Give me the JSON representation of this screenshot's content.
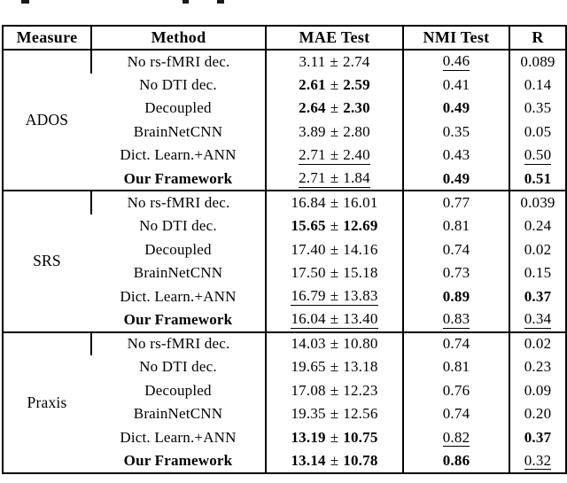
{
  "pm": "±",
  "header": {
    "measure": "Measure",
    "method": "Method",
    "mae": "MAE Test",
    "nmi": "NMI Test",
    "r": "R"
  },
  "sections": [
    {
      "measure": "ADOS",
      "rows": [
        {
          "method": "No rs-fMRI dec.",
          "method_class": "",
          "mae_mean": "3.11",
          "mae_std": "2.74",
          "mae_class": "",
          "nmi": "0.46",
          "nmi_class": "underline",
          "r": "0.089",
          "r_class": ""
        },
        {
          "method": "No DTI dec.",
          "method_class": "",
          "mae_mean": "2.61",
          "mae_std": "2.59",
          "mae_class": "bold",
          "nmi": "0.41",
          "nmi_class": "",
          "r": "0.14",
          "r_class": ""
        },
        {
          "method": "Decoupled",
          "method_class": "",
          "mae_mean": "2.64",
          "mae_std": "2.30",
          "mae_class": "bold",
          "nmi": "0.49",
          "nmi_class": "bold",
          "r": "0.35",
          "r_class": ""
        },
        {
          "method": "BrainNetCNN",
          "method_class": "",
          "mae_mean": "3.89",
          "mae_std": "2.80",
          "mae_class": "",
          "nmi": "0.35",
          "nmi_class": "",
          "r": "0.05",
          "r_class": ""
        },
        {
          "method": "Dict. Learn.+ANN",
          "method_class": "",
          "mae_mean": "2.71",
          "mae_std": "2.40",
          "mae_class": "underline",
          "nmi": "0.43",
          "nmi_class": "",
          "r": "0.50",
          "r_class": "underline"
        },
        {
          "method": "Our Framework",
          "method_class": "bold",
          "mae_mean": "2.71",
          "mae_std": "1.84",
          "mae_class": "underline",
          "nmi": "0.49",
          "nmi_class": "bold",
          "r": "0.51",
          "r_class": "bold"
        }
      ]
    },
    {
      "measure": "SRS",
      "rows": [
        {
          "method": "No rs-fMRI dec.",
          "method_class": "",
          "mae_mean": "16.84",
          "mae_std": "16.01",
          "mae_class": "",
          "nmi": "0.77",
          "nmi_class": "",
          "r": "0.039",
          "r_class": ""
        },
        {
          "method": "No DTI dec.",
          "method_class": "",
          "mae_mean": "15.65",
          "mae_std": "12.69",
          "mae_class": "bold",
          "nmi": "0.81",
          "nmi_class": "",
          "r": "0.24",
          "r_class": ""
        },
        {
          "method": "Decoupled",
          "method_class": "",
          "mae_mean": "17.40",
          "mae_std": "14.16",
          "mae_class": "",
          "nmi": "0.74",
          "nmi_class": "",
          "r": "0.02",
          "r_class": ""
        },
        {
          "method": "BrainNetCNN",
          "method_class": "",
          "mae_mean": "17.50",
          "mae_std": "15.18",
          "mae_class": "",
          "nmi": "0.73",
          "nmi_class": "",
          "r": "0.15",
          "r_class": ""
        },
        {
          "method": "Dict. Learn.+ANN",
          "method_class": "",
          "mae_mean": "16.79",
          "mae_std": "13.83",
          "mae_class": "underline",
          "nmi": "0.89",
          "nmi_class": "bold",
          "r": "0.37",
          "r_class": "bold"
        },
        {
          "method": "Our Framework",
          "method_class": "bold",
          "mae_mean": "16.04",
          "mae_std": "13.40",
          "mae_class": "underline",
          "nmi": "0.83",
          "nmi_class": "underline",
          "r": "0.34",
          "r_class": "underline"
        }
      ]
    },
    {
      "measure": "Praxis",
      "rows": [
        {
          "method": "No rs-fMRI dec.",
          "method_class": "",
          "mae_mean": "14.03",
          "mae_std": "10.80",
          "mae_class": "",
          "nmi": "0.74",
          "nmi_class": "",
          "r": "0.02",
          "r_class": ""
        },
        {
          "method": "No DTI dec.",
          "method_class": "",
          "mae_mean": "19.65",
          "mae_std": "13.18",
          "mae_class": "",
          "nmi": "0.81",
          "nmi_class": "",
          "r": "0.23",
          "r_class": ""
        },
        {
          "method": "Decoupled",
          "method_class": "",
          "mae_mean": "17.08",
          "mae_std": "12.23",
          "mae_class": "",
          "nmi": "0.76",
          "nmi_class": "",
          "r": "0.09",
          "r_class": ""
        },
        {
          "method": "BrainNetCNN",
          "method_class": "",
          "mae_mean": "19.35",
          "mae_std": "12.56",
          "mae_class": "",
          "nmi": "0.74",
          "nmi_class": "",
          "r": "0.20",
          "r_class": ""
        },
        {
          "method": "Dict. Learn.+ANN",
          "method_class": "",
          "mae_mean": "13.19",
          "mae_std": "10.75",
          "mae_class": "bold",
          "nmi": "0.82",
          "nmi_class": "underline",
          "r": "0.37",
          "r_class": "bold"
        },
        {
          "method": "Our Framework",
          "method_class": "bold",
          "mae_mean": "13.14",
          "mae_std": "10.78",
          "mae_class": "bold",
          "nmi": "0.86",
          "nmi_class": "bold",
          "r": "0.32",
          "r_class": "underline"
        }
      ]
    }
  ]
}
